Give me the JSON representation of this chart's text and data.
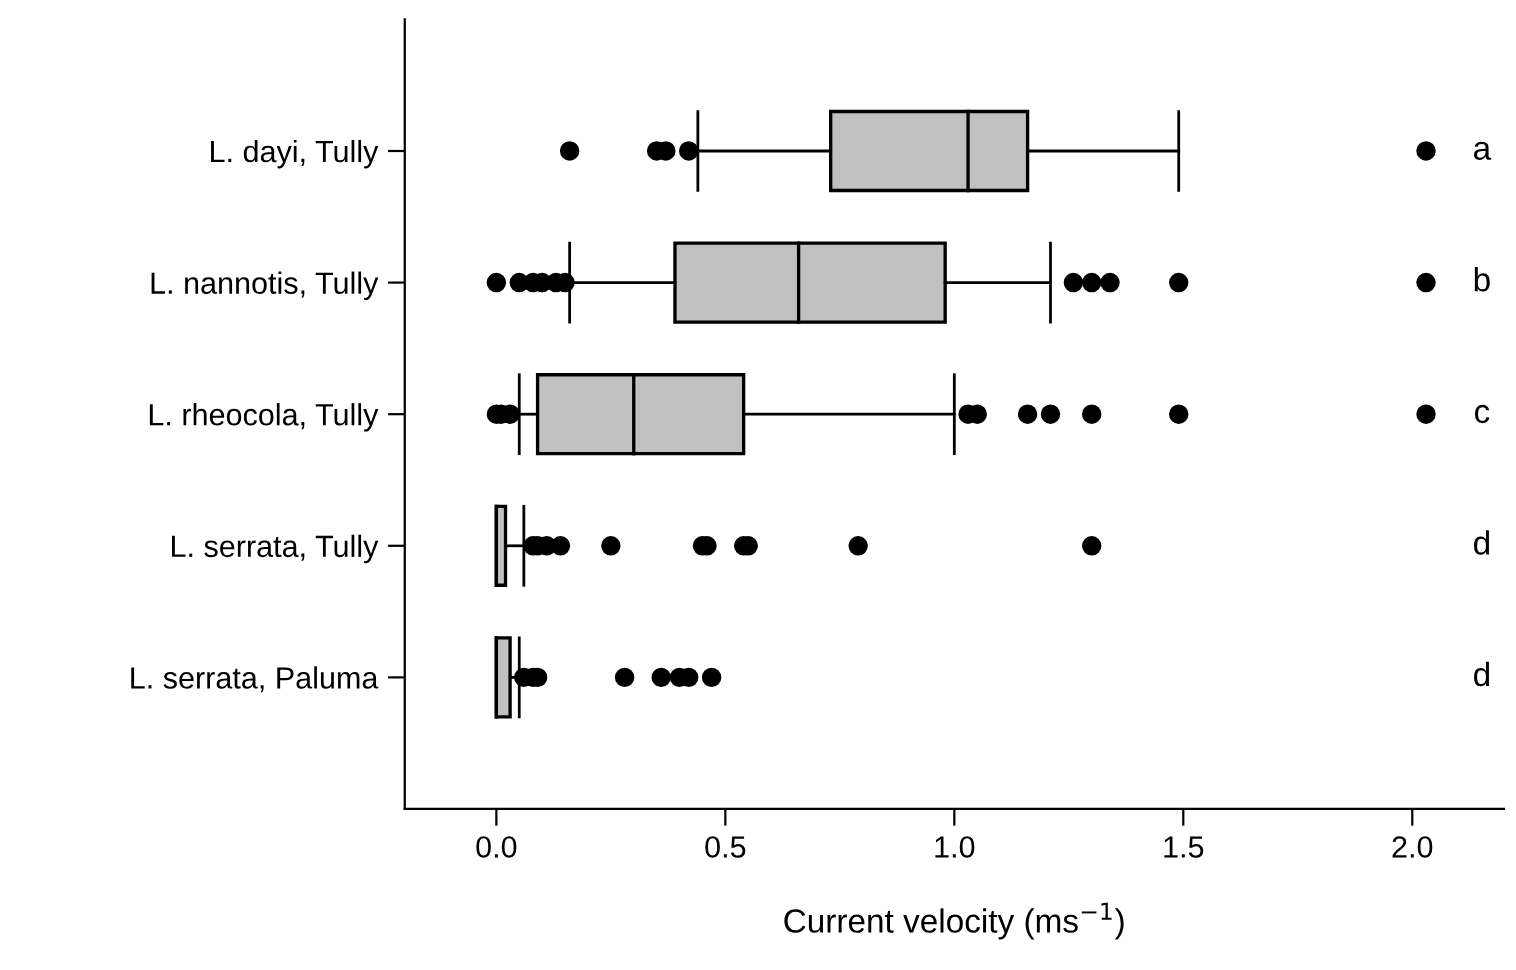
{
  "chart_data": {
    "type": "box",
    "orientation": "horizontal",
    "xlabel": "Current velocity (ms$^{−1}$)",
    "categories": [
      "L. dayi, Tully",
      "L. nannotis, Tully",
      "L. rheocola, Tully",
      "L. serrata, Tully",
      "L. serrata, Paluma"
    ],
    "boxes": [
      {
        "low": 0.44,
        "q1": 0.73,
        "median": 1.03,
        "q3": 1.16,
        "high": 1.49,
        "outliers": [
          0.16,
          0.35,
          0.37,
          0.42,
          2.03
        ]
      },
      {
        "low": 0.16,
        "q1": 0.39,
        "median": 0.66,
        "q3": 0.98,
        "high": 1.21,
        "outliers": [
          0.0,
          0.05,
          0.08,
          0.1,
          0.13,
          0.15,
          1.26,
          1.3,
          1.34,
          1.49,
          2.03
        ]
      },
      {
        "low": 0.05,
        "q1": 0.09,
        "median": 0.3,
        "q3": 0.54,
        "high": 1.0,
        "outliers": [
          0.0,
          0.01,
          0.03,
          1.03,
          1.05,
          1.16,
          1.21,
          1.3,
          1.49,
          2.03
        ]
      },
      {
        "low": 0.0,
        "q1": 0.0,
        "median": 0.0,
        "q3": 0.02,
        "high": 0.06,
        "outliers": [
          0.08,
          0.09,
          0.11,
          0.14,
          0.25,
          0.45,
          0.46,
          0.54,
          0.55,
          0.79,
          1.3
        ]
      },
      {
        "low": 0.0,
        "q1": 0.0,
        "median": 0.0,
        "q3": 0.03,
        "high": 0.05,
        "outliers": [
          0.06,
          0.08,
          0.09,
          0.28,
          0.36,
          0.4,
          0.42,
          0.47
        ]
      }
    ],
    "color": "#c0c0c0",
    "xlim": [
      -0.2,
      2.2
    ],
    "xticks": [
      {
        "value": 0,
        "label": "0.0"
      },
      0.5,
      {
        "value": 1,
        "label": "1.0"
      },
      1.5,
      {
        "value": 2,
        "label": "2.0"
      }
    ],
    "grid": false,
    "annotations": [
      "a",
      "b",
      "c",
      "d",
      "d"
    ]
  }
}
